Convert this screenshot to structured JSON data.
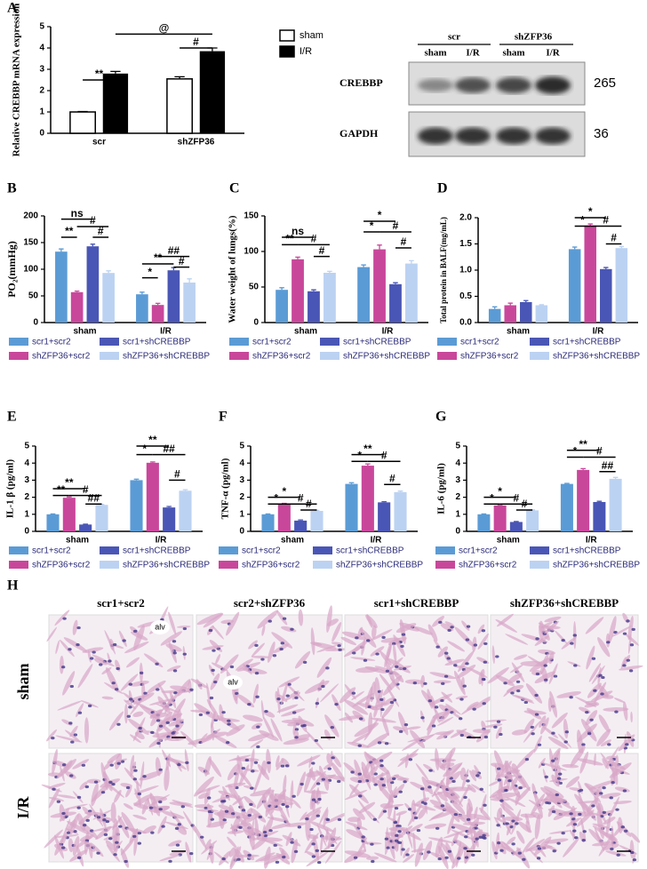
{
  "chart_data": [
    {
      "type": "bar",
      "label": "A",
      "ylabel": "Relative CREBBP mRNA expression",
      "categories": [
        "scr",
        "shZFP36"
      ],
      "series": [
        {
          "name": "sham",
          "color": "#ffffff",
          "values": [
            1.0,
            2.55
          ],
          "errors": [
            0.02,
            0.1
          ]
        },
        {
          "name": "I/R",
          "color": "#000000",
          "values": [
            2.8,
            3.85
          ],
          "errors": [
            0.1,
            0.15
          ]
        }
      ],
      "ylim": [
        0,
        5
      ],
      "yticks": [
        0,
        1,
        2,
        3,
        4,
        5
      ],
      "annotations": [
        "**",
        "#",
        "@"
      ]
    },
    {
      "type": "bar",
      "label": "B",
      "ylabel": "PO₂(mmHg)",
      "categories": [
        "sham",
        "I/R"
      ],
      "series": [
        {
          "name": "scr1+scr2",
          "color": "#5b9bd5",
          "values": [
            133,
            53
          ],
          "errors": [
            5,
            4
          ]
        },
        {
          "name": "shZFP36+scr2",
          "color": "#c9479b",
          "values": [
            57,
            33
          ],
          "errors": [
            2,
            3
          ]
        },
        {
          "name": "scr1+shCREBBP",
          "color": "#4a56b5",
          "values": [
            143,
            98
          ],
          "errors": [
            4,
            5
          ]
        },
        {
          "name": "shZFP36+shCREBBP",
          "color": "#bcd2f2",
          "values": [
            93,
            75
          ],
          "errors": [
            4,
            7
          ]
        }
      ],
      "ylim": [
        0,
        200
      ],
      "yticks": [
        0,
        50,
        100,
        150,
        200
      ],
      "annotations": [
        "ns",
        "#",
        "**",
        "#",
        "##",
        "**",
        "#",
        "*"
      ]
    },
    {
      "type": "bar",
      "label": "C",
      "ylabel": "Water weight of lungs(%)",
      "categories": [
        "sham",
        "I/R"
      ],
      "series": [
        {
          "name": "scr1+scr2",
          "color": "#5b9bd5",
          "values": [
            46,
            78
          ],
          "errors": [
            3,
            3
          ]
        },
        {
          "name": "shZFP36+scr2",
          "color": "#c9479b",
          "values": [
            89,
            103
          ],
          "errors": [
            3,
            6
          ]
        },
        {
          "name": "scr1+shCREBBP",
          "color": "#4a56b5",
          "values": [
            44,
            54
          ],
          "errors": [
            2,
            2
          ]
        },
        {
          "name": "shZFP36+shCREBBP",
          "color": "#bcd2f2",
          "values": [
            70,
            83
          ],
          "errors": [
            2,
            4
          ]
        }
      ],
      "ylim": [
        0,
        150
      ],
      "yticks": [
        0,
        50,
        100,
        150
      ],
      "annotations": [
        "ns",
        "**",
        "#",
        "#",
        "*",
        "*",
        "#",
        "#"
      ]
    },
    {
      "type": "bar",
      "label": "D",
      "ylabel": "Total protein in BALF(mg/mL)",
      "categories": [
        "sham",
        "I/R"
      ],
      "series": [
        {
          "name": "scr1+scr2",
          "color": "#5b9bd5",
          "values": [
            0.26,
            1.4
          ],
          "errors": [
            0.04,
            0.04
          ]
        },
        {
          "name": "shZFP36+scr2",
          "color": "#c9479b",
          "values": [
            0.33,
            1.85
          ],
          "errors": [
            0.04,
            0.03
          ]
        },
        {
          "name": "scr1+shCREBBP",
          "color": "#4a56b5",
          "values": [
            0.39,
            1.02
          ],
          "errors": [
            0.03,
            0.03
          ]
        },
        {
          "name": "shZFP36+shCREBBP",
          "color": "#bcd2f2",
          "values": [
            0.33,
            1.42
          ],
          "errors": [
            0.01,
            0.03
          ]
        }
      ],
      "ylim": [
        0,
        2.0
      ],
      "yticks": [
        {
          "value": 0,
          "label": "0.0"
        },
        0.5,
        {
          "value": 1,
          "label": "1.0"
        },
        1.5,
        {
          "value": 2,
          "label": "2.0"
        }
      ],
      "annotations": [
        "*",
        "*",
        "#",
        "#"
      ]
    },
    {
      "type": "bar",
      "label": "E",
      "ylabel": "IL-1 β (pg/ml)",
      "categories": [
        "sham",
        "I/R"
      ],
      "series": [
        {
          "name": "scr1+scr2",
          "color": "#5b9bd5",
          "values": [
            1.0,
            3.0
          ],
          "errors": [
            0.02,
            0.06
          ]
        },
        {
          "name": "shZFP36+scr2",
          "color": "#c9479b",
          "values": [
            1.97,
            4.02
          ],
          "errors": [
            0.05,
            0.05
          ]
        },
        {
          "name": "scr1+shCREBBP",
          "color": "#4a56b5",
          "values": [
            0.4,
            1.4
          ],
          "errors": [
            0.02,
            0.06
          ]
        },
        {
          "name": "shZFP36+shCREBBP",
          "color": "#bcd2f2",
          "values": [
            1.55,
            2.38
          ],
          "errors": [
            0.03,
            0.06
          ]
        }
      ],
      "ylim": [
        0,
        5
      ],
      "yticks": [
        0,
        1,
        2,
        3,
        4,
        5
      ],
      "annotations": [
        "**",
        "**",
        "#",
        "##",
        "**",
        "*",
        "##",
        "#"
      ]
    },
    {
      "type": "bar",
      "label": "F",
      "ylabel": "TNF-α (pg/ml)",
      "categories": [
        "sham",
        "I/R"
      ],
      "series": [
        {
          "name": "scr1+scr2",
          "color": "#5b9bd5",
          "values": [
            1.0,
            2.78
          ],
          "errors": [
            0.02,
            0.07
          ]
        },
        {
          "name": "shZFP36+scr2",
          "color": "#c9479b",
          "values": [
            1.6,
            3.85
          ],
          "errors": [
            0.04,
            0.1
          ]
        },
        {
          "name": "scr1+shCREBBP",
          "color": "#4a56b5",
          "values": [
            0.63,
            1.7
          ],
          "errors": [
            0.04,
            0.04
          ]
        },
        {
          "name": "shZFP36+shCREBBP",
          "color": "#bcd2f2",
          "values": [
            1.2,
            2.3
          ],
          "errors": [
            0.03,
            0.06
          ]
        }
      ],
      "ylim": [
        0,
        5
      ],
      "yticks": [
        0,
        1,
        2,
        3,
        4,
        5
      ],
      "annotations": [
        "*",
        "*",
        "#",
        "#",
        "**",
        "*",
        "#",
        "#"
      ]
    },
    {
      "type": "bar",
      "label": "G",
      "ylabel": "IL-6 (pg/ml)",
      "categories": [
        "sham",
        "I/R"
      ],
      "series": [
        {
          "name": "scr1+scr2",
          "color": "#5b9bd5",
          "values": [
            1.0,
            2.78
          ],
          "errors": [
            0.02,
            0.03
          ]
        },
        {
          "name": "shZFP36+scr2",
          "color": "#c9479b",
          "values": [
            1.52,
            3.6
          ],
          "errors": [
            0.03,
            0.08
          ]
        },
        {
          "name": "scr1+shCREBBP",
          "color": "#4a56b5",
          "values": [
            0.55,
            1.72
          ],
          "errors": [
            0.03,
            0.04
          ]
        },
        {
          "name": "shZFP36+shCREBBP",
          "color": "#bcd2f2",
          "values": [
            1.23,
            3.08
          ],
          "errors": [
            0.03,
            0.08
          ]
        }
      ],
      "ylim": [
        0,
        5
      ],
      "yticks": [
        0,
        1,
        2,
        3,
        4,
        5
      ],
      "annotations": [
        "*",
        "*",
        "#",
        "#",
        "**",
        "*",
        "#",
        "##"
      ]
    }
  ],
  "blot": {
    "groups": [
      "scr",
      "shZFP36"
    ],
    "lanes": [
      "sham",
      "I/R",
      "sham",
      "I/R"
    ],
    "proteins": [
      "CREBBP",
      "GAPDH"
    ],
    "sizes": [
      265,
      36
    ]
  },
  "histology": {
    "label": "H",
    "columns": [
      "scr1+scr2",
      "scr2+shZFP36",
      "scr1+shCREBBP",
      "shZFP36+shCREBBP"
    ],
    "rows": [
      "sham",
      "I/R"
    ],
    "annotations": [
      "alv",
      "alv"
    ]
  }
}
